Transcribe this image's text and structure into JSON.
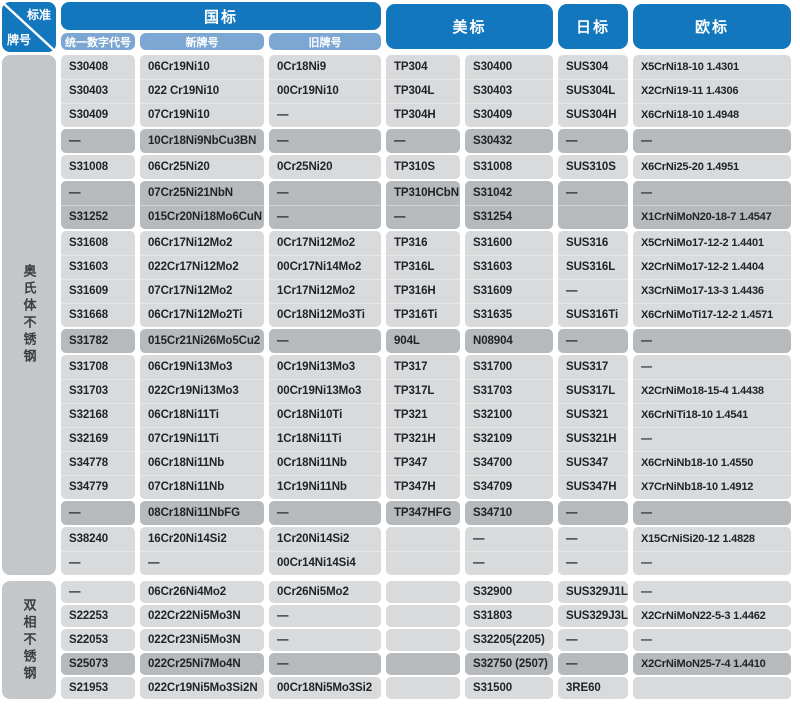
{
  "colors": {
    "header_blue": "#1377bd",
    "subheader_blue": "#7ca7d3",
    "row_light": "#d8dadc",
    "row_dark": "#b6babd",
    "label_bg": "#c4c7ca",
    "text_dark": "#212326"
  },
  "header": {
    "corner_top": "标准",
    "corner_bottom": "牌号",
    "gb": "国标",
    "gb_sub": [
      "统一数字代号",
      "新牌号",
      "旧牌号"
    ],
    "us": "美标",
    "jp": "日标",
    "eu": "欧标"
  },
  "sections": [
    {
      "id": "austenitic",
      "label": "奥氏体不锈钢",
      "groups": [
        {
          "shade": "light",
          "rows": [
            [
              "S30408",
              "06Cr19Ni10",
              "0Cr18Ni9",
              "TP304",
              "S30400",
              "SUS304",
              "X5CrNi18-10 1.4301"
            ],
            [
              "S30403",
              "022 Cr19Ni10",
              "00Cr19Ni10",
              "TP304L",
              "S30403",
              "SUS304L",
              "X2CrNi19-11 1.4306"
            ],
            [
              "S30409",
              "07Cr19Ni10",
              "—",
              "TP304H",
              "S30409",
              "SUS304H",
              "X6CrNi18-10 1.4948"
            ]
          ]
        },
        {
          "shade": "dark",
          "rows": [
            [
              "—",
              "10Cr18Ni9NbCu3BN",
              "—",
              "—",
              "S30432",
              "—",
              "—"
            ]
          ]
        },
        {
          "shade": "light",
          "rows": [
            [
              "S31008",
              "06Cr25Ni20",
              "0Cr25Ni20",
              "TP310S",
              "S31008",
              "SUS310S",
              "X6CrNi25-20 1.4951"
            ]
          ]
        },
        {
          "shade": "dark",
          "rows": [
            [
              "—",
              "07Cr25Ni21NbN",
              "—",
              "TP310HCbN",
              "S31042",
              "—",
              "—"
            ],
            [
              "S31252",
              "015Cr20Ni18Mo6CuN",
              "—",
              "—",
              "S31254",
              "",
              "X1CrNiMoN20-18-7 1.4547"
            ]
          ]
        },
        {
          "shade": "light",
          "rows": [
            [
              "S31608",
              "06Cr17Ni12Mo2",
              "0Cr17Ni12Mo2",
              "TP316",
              "S31600",
              "SUS316",
              "X5CrNiMo17-12-2 1.4401"
            ],
            [
              "S31603",
              "022Cr17Ni12Mo2",
              "00Cr17Ni14Mo2",
              "TP316L",
              "S31603",
              "SUS316L",
              "X2CrNiMo17-12-2 1.4404"
            ],
            [
              "S31609",
              "07Cr17Ni12Mo2",
              "1Cr17Ni12Mo2",
              "TP316H",
              "S31609",
              "—",
              "X3CrNiMo17-13-3 1.4436"
            ],
            [
              "S31668",
              "06Cr17Ni12Mo2Ti",
              "0Cr18Ni12Mo3Ti",
              "TP316Ti",
              "S31635",
              "SUS316Ti",
              "X6CrNiMoTi17-12-2 1.4571"
            ]
          ]
        },
        {
          "shade": "dark",
          "rows": [
            [
              "S31782",
              "015Cr21Ni26Mo5Cu2",
              "—",
              "904L",
              "N08904",
              "—",
              "—"
            ]
          ]
        },
        {
          "shade": "light",
          "rows": [
            [
              "S31708",
              "06Cr19Ni13Mo3",
              "0Cr19Ni13Mo3",
              "TP317",
              "S31700",
              "SUS317",
              "—"
            ],
            [
              "S31703",
              "022Cr19Ni13Mo3",
              "00Cr19Ni13Mo3",
              "TP317L",
              "S31703",
              "SUS317L",
              "X2CrNiMo18-15-4 1.4438"
            ],
            [
              "S32168",
              "06Cr18Ni11Ti",
              "0Cr18Ni10Ti",
              "TP321",
              "S32100",
              "SUS321",
              "X6CrNiTi18-10 1.4541"
            ],
            [
              "S32169",
              "07Cr19Ni11Ti",
              "1Cr18Ni11Ti",
              "TP321H",
              "S32109",
              "SUS321H",
              "—"
            ],
            [
              "S34778",
              "06Cr18Ni11Nb",
              "0Cr18Ni11Nb",
              "TP347",
              "S34700",
              "SUS347",
              "X6CrNiNb18-10 1.4550"
            ],
            [
              "S34779",
              "07Cr18Ni11Nb",
              "1Cr19Ni11Nb",
              "TP347H",
              "S34709",
              "SUS347H",
              "X7CrNiNb18-10 1.4912"
            ]
          ]
        },
        {
          "shade": "dark",
          "rows": [
            [
              "—",
              "08Cr18Ni11NbFG",
              "—",
              "TP347HFG",
              "S34710",
              "—",
              "—"
            ]
          ]
        },
        {
          "shade": "light",
          "rows": [
            [
              "S38240",
              "16Cr20Ni14Si2",
              "1Cr20Ni14Si2",
              "",
              "—",
              "—",
              "X15CrNiSi20-12 1.4828"
            ],
            [
              "—",
              "—",
              "00Cr14Ni14Si4",
              "",
              "—",
              "—",
              "—"
            ]
          ]
        }
      ]
    },
    {
      "id": "duplex",
      "label": "双相不锈钢",
      "groups": [
        {
          "shade": "light",
          "rows": [
            [
              "—",
              "06Cr26Ni4Mo2",
              "0Cr26Ni5Mo2",
              "",
              "S32900",
              "SUS329J1L",
              "—"
            ]
          ]
        },
        {
          "shade": "light",
          "rows": [
            [
              "S22253",
              "022Cr22Ni5Mo3N",
              "—",
              "",
              "S31803",
              "SUS329J3L",
              "X2CrNiMoN22-5-3 1.4462"
            ]
          ]
        },
        {
          "shade": "light",
          "rows": [
            [
              "S22053",
              "022Cr23Ni5Mo3N",
              "—",
              "",
              "S32205(2205)",
              "—",
              "—"
            ]
          ]
        },
        {
          "shade": "dark",
          "rows": [
            [
              "S25073",
              "022Cr25Ni7Mo4N",
              "—",
              "",
              "S32750 (2507)",
              "—",
              "X2CrNiMoN25-7-4 1.4410"
            ]
          ]
        },
        {
          "shade": "light",
          "rows": [
            [
              "S21953",
              "022Cr19Ni5Mo3Si2N",
              "00Cr18Ni5Mo3Si2",
              "",
              "S31500",
              "3RE60",
              ""
            ]
          ]
        }
      ]
    }
  ],
  "column_keys": [
    "unified-code",
    "new-grade",
    "old-grade",
    "astm-grade",
    "uns-grade",
    "jis-grade",
    "en-grade"
  ]
}
